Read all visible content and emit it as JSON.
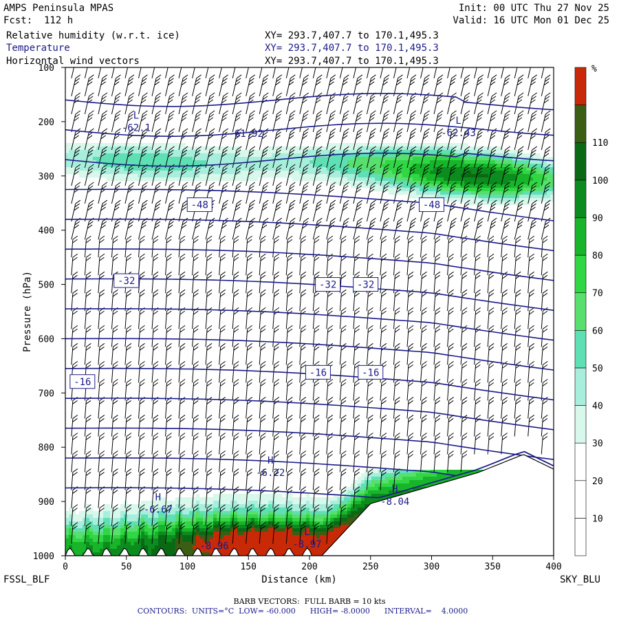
{
  "header": {
    "model": "AMPS Peninsula MPAS",
    "forecast": "Fcst:  112 h",
    "init": "Init: 00 UTC Thu 27 Nov 25",
    "valid": "Valid: 16 UTC Mon 01 Dec 25",
    "fields": [
      {
        "name": "Relative humidity (w.r.t. ice)",
        "xy": "XY= 293.7,407.7 to 170.1,495.3"
      },
      {
        "name": "Temperature",
        "xy": "XY= 293.7,407.7 to 170.1,495.3"
      },
      {
        "name": "Horizontal wind vectors",
        "xy": "XY= 293.7,407.7 to 170.1,495.3"
      }
    ]
  },
  "chart_data": {
    "type": "heatmap",
    "xlabel": "Distance (km)",
    "ylabel": "Pressure (hPa)",
    "xlim": [
      0,
      400
    ],
    "ylim": [
      1000,
      100
    ],
    "xticks": [
      0,
      50,
      100,
      150,
      200,
      250,
      300,
      350,
      400
    ],
    "xtick_labels": [
      "0",
      "50",
      "100",
      "150",
      "200",
      "250",
      "300",
      "350",
      "400"
    ],
    "yticks": [
      100,
      200,
      300,
      400,
      500,
      600,
      700,
      800,
      900,
      1000
    ],
    "ytick_labels": [
      "100",
      "200",
      "300",
      "400",
      "500",
      "600",
      "700",
      "800",
      "900",
      "1000"
    ],
    "start_label": "FSSL_BLF",
    "end_label": "SKY_BLU",
    "colorbar": {
      "unit_label": "%",
      "levels": [
        0,
        10,
        20,
        30,
        40,
        50,
        60,
        70,
        80,
        90,
        100,
        110,
        120
      ],
      "labels": [
        "10",
        "20",
        "30",
        "40",
        "50",
        "60",
        "70",
        "80",
        "90",
        "100",
        "110"
      ],
      "colors": [
        "#ffffff",
        "#ffffff",
        "#ffffff",
        "#d8f8ec",
        "#a8eedc",
        "#5fe0b4",
        "#58df6e",
        "#30d644",
        "#18b42a",
        "#0c8c1e",
        "#0a6a14",
        "#3c5e14",
        "#c82a08"
      ]
    },
    "temperature_contours": {
      "levels": [
        -60,
        -56,
        -52,
        -48,
        -44,
        -40,
        -36,
        -32,
        -28,
        -24,
        -20,
        -16,
        -12,
        -8
      ],
      "labels": [
        {
          "text": "-48",
          "x": 110,
          "p": 353
        },
        {
          "text": "-48",
          "x": 300,
          "p": 353
        },
        {
          "text": "-32",
          "x": 50,
          "p": 493
        },
        {
          "text": "-32",
          "x": 215,
          "p": 500
        },
        {
          "text": "-32",
          "x": 246,
          "p": 500
        },
        {
          "text": "-16",
          "x": 14,
          "p": 679
        },
        {
          "text": "-16",
          "x": 207,
          "p": 662
        },
        {
          "text": "-16",
          "x": 250,
          "p": 662
        }
      ],
      "extrema": [
        {
          "mark": "L",
          "value": "-62.1",
          "x": 58,
          "p": 212
        },
        {
          "mark": "",
          "value": "-61.92",
          "x": 148,
          "p": 223
        },
        {
          "mark": "L",
          "value": "-62.43",
          "x": 322,
          "p": 222
        },
        {
          "mark": "H",
          "value": "-6.22",
          "x": 168,
          "p": 848
        },
        {
          "mark": "H",
          "value": "-6.67",
          "x": 76,
          "p": 916
        },
        {
          "mark": "H",
          "value": "-8.04",
          "x": 270,
          "p": 901
        },
        {
          "mark": "",
          "value": "-8.96",
          "x": 122,
          "p": 983
        },
        {
          "mark": "L",
          "value": "-8.97",
          "x": 198,
          "p": 980
        }
      ]
    },
    "wind_vectors": "barbs"
  },
  "footer": {
    "barb_line": "BARB VECTORS:  FULL BARB = 10 kts",
    "contour_line": "CONTOURS:  UNITS=°C  LOW= -60.000      HIGH= -8.0000      INTERVAL=    4.0000"
  }
}
